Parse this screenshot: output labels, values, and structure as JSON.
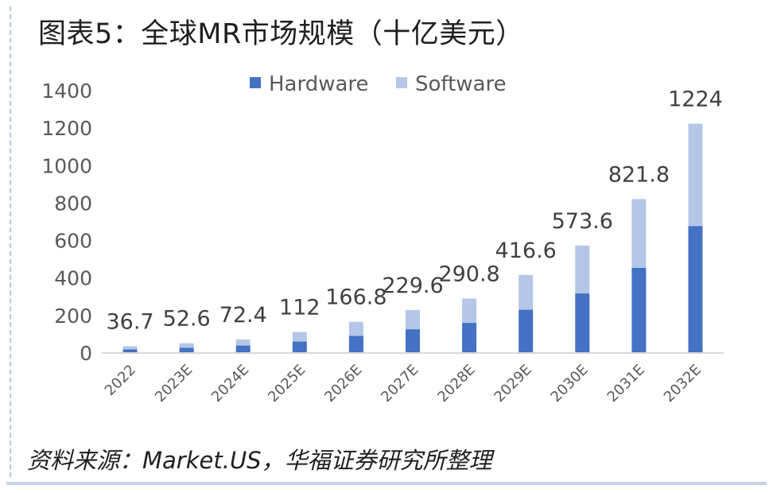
{
  "title": "图表5：全球MR市场规模（十亿美元）",
  "source": "资料来源：Market.US，华福证券研究所整理",
  "colors": {
    "hardware": "#4472c4",
    "software": "#b4c7e7",
    "axis": "#d9d9d9",
    "text": "#595959"
  },
  "chart_data": {
    "type": "bar",
    "stacked": true,
    "categories": [
      "2022",
      "2023E",
      "2024E",
      "2025E",
      "2026E",
      "2027E",
      "2028E",
      "2029E",
      "2030E",
      "2031E",
      "2032E"
    ],
    "series": [
      {
        "name": "Hardware",
        "values": [
          20,
          29,
          40,
          62,
          92,
          127,
          161,
          231,
          318,
          455,
          678
        ]
      },
      {
        "name": "Software",
        "values": [
          16.7,
          23.6,
          32.4,
          50,
          74.8,
          102.6,
          129.8,
          185.6,
          255.6,
          366.8,
          546
        ]
      }
    ],
    "totals": [
      36.7,
      52.6,
      72.4,
      112,
      166.8,
      229.6,
      290.8,
      416.6,
      573.6,
      821.8,
      1224
    ],
    "total_labels": [
      "36.7",
      "52.6",
      "72.4",
      "112",
      "166.8",
      "229.6",
      "290.8",
      "416.6",
      "573.6",
      "821.8",
      "1224"
    ],
    "ylim": [
      0,
      1400
    ],
    "yticks": [
      0,
      200,
      400,
      600,
      800,
      1000,
      1200,
      1400
    ],
    "legend_position": "top-center",
    "grid": false
  }
}
